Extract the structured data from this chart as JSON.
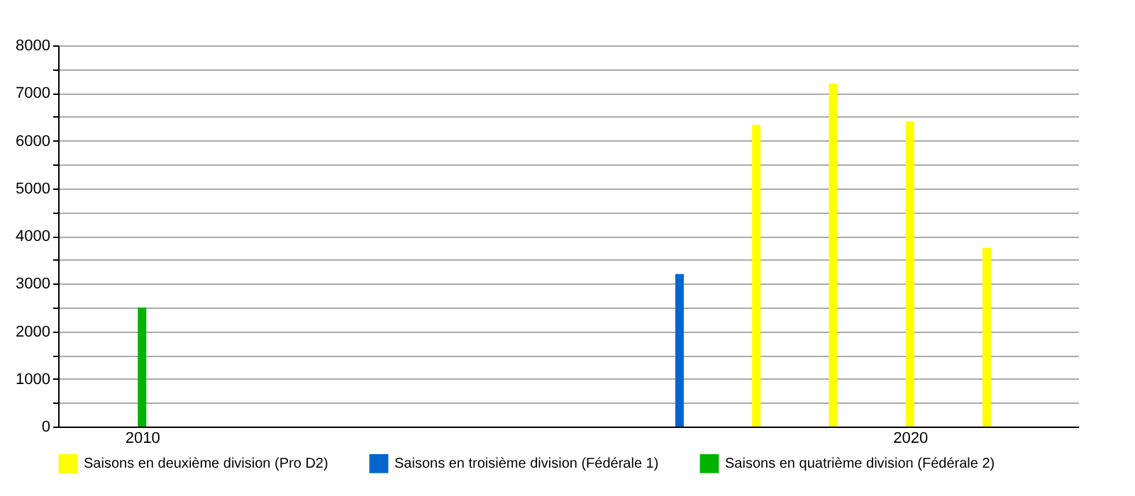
{
  "chart_data": {
    "type": "bar",
    "series": [
      {
        "name": "Saisons en deuxième division (Pro D2)",
        "color": "#ffff00",
        "x": [
          2018,
          2019,
          2020,
          2021
        ],
        "values": [
          6330,
          7200,
          6400,
          3750
        ]
      },
      {
        "name": "Saisons en troisième division (Fédérale 1)",
        "color": "#0066cc",
        "x": [
          2017
        ],
        "values": [
          3200
        ]
      },
      {
        "name": "Saisons en quatrième division (Fédérale 2)",
        "color": "#00b400",
        "x": [
          2010
        ],
        "values": [
          2500
        ]
      }
    ],
    "xlim": [
      2009,
      2022.1
    ],
    "xticks": [
      2010,
      2020
    ],
    "ylim": [
      0,
      8000
    ],
    "yticks": [
      0,
      {
        "value": 500,
        "label": null
      },
      1000,
      {
        "value": 1500,
        "label": null
      },
      2000,
      {
        "value": 2500,
        "label": null
      },
      3000,
      {
        "value": 3500,
        "label": null
      },
      4000,
      {
        "value": 4500,
        "label": null
      },
      5000,
      {
        "value": 5500,
        "label": null
      },
      6000,
      {
        "value": 6500,
        "label": null
      },
      7000,
      {
        "value": 7500,
        "label": null
      },
      8000
    ],
    "grid": "y",
    "legend": "bottom"
  }
}
